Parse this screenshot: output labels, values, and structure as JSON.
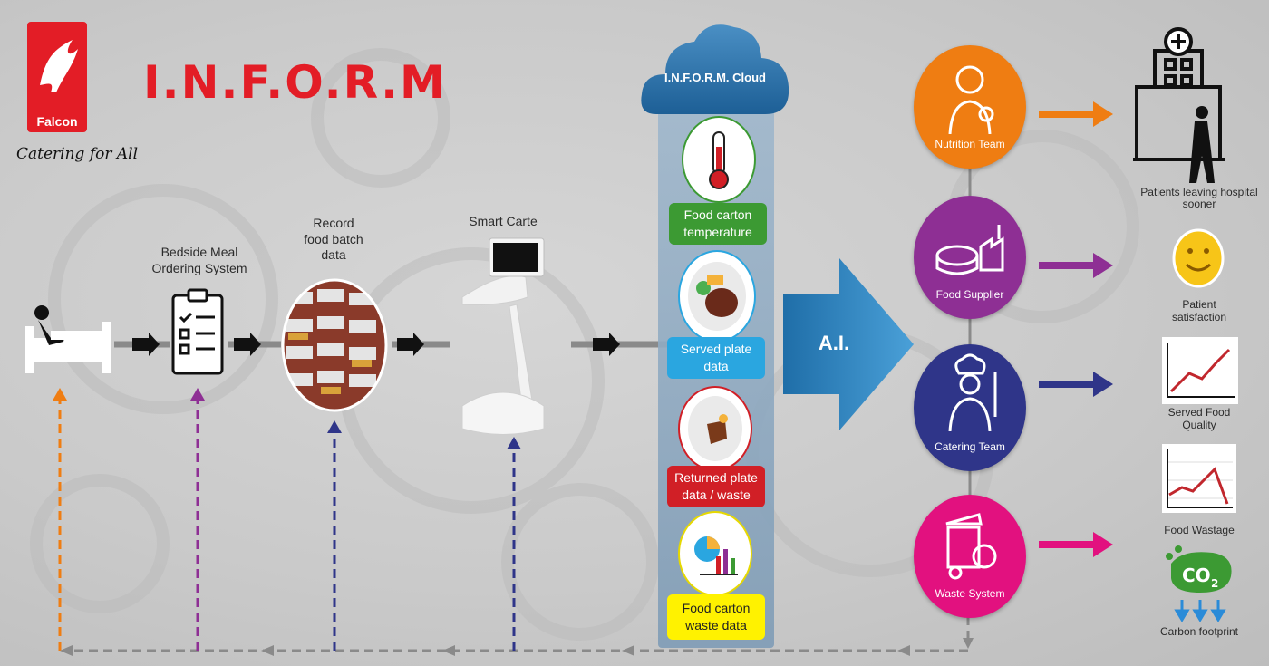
{
  "brand": {
    "logo_text": "Falcon",
    "tagline": "Catering for All",
    "title": "I.N.F.O.R.M"
  },
  "colors": {
    "brand_red": "#e31d26",
    "orange": "#ef7d12",
    "purple": "#8e2f94",
    "navy": "#2f3589",
    "magenta": "#e2117f",
    "green": "#3c9a33",
    "blue": "#2aa6e0",
    "red": "#d11f26",
    "yellow": "#fff200"
  },
  "flow": {
    "bedside": "Bedside Meal\nOrdering System",
    "record": "Record\nfood batch\ndata",
    "smart_carte": "Smart Carte"
  },
  "cloud": {
    "title": "I.N.F.O.R.M. Cloud",
    "items": [
      {
        "label": "Food carton\ntemperature",
        "icon": "thermometer-icon"
      },
      {
        "label": "Served plate\ndata",
        "icon": "plate-icon"
      },
      {
        "label": "Returned plate\ndata / waste",
        "icon": "leftovers-icon"
      },
      {
        "label": "Food carton\nwaste data",
        "icon": "chart-icon"
      }
    ]
  },
  "ai_label": "A.I.",
  "teams": [
    {
      "label": "Nutrition Team",
      "icon": "nutritionist-icon"
    },
    {
      "label": "Food Supplier",
      "icon": "factory-icon"
    },
    {
      "label": "Catering Team",
      "icon": "chef-icon"
    },
    {
      "label": "Waste System",
      "icon": "waste-bin-icon"
    }
  ],
  "outcomes": [
    {
      "label": "Patients leaving hospital\nsooner",
      "icon": "hospital-icon"
    },
    {
      "label": "Patient\nsatisfaction",
      "icon": "smiley-icon"
    },
    {
      "label": "Served Food\nQuality",
      "icon": "rising-chart-icon"
    },
    {
      "label": "Food Wastage",
      "icon": "falling-chart-icon"
    },
    {
      "label": "Carbon footprint",
      "icon": "co2-footprint-icon"
    }
  ]
}
